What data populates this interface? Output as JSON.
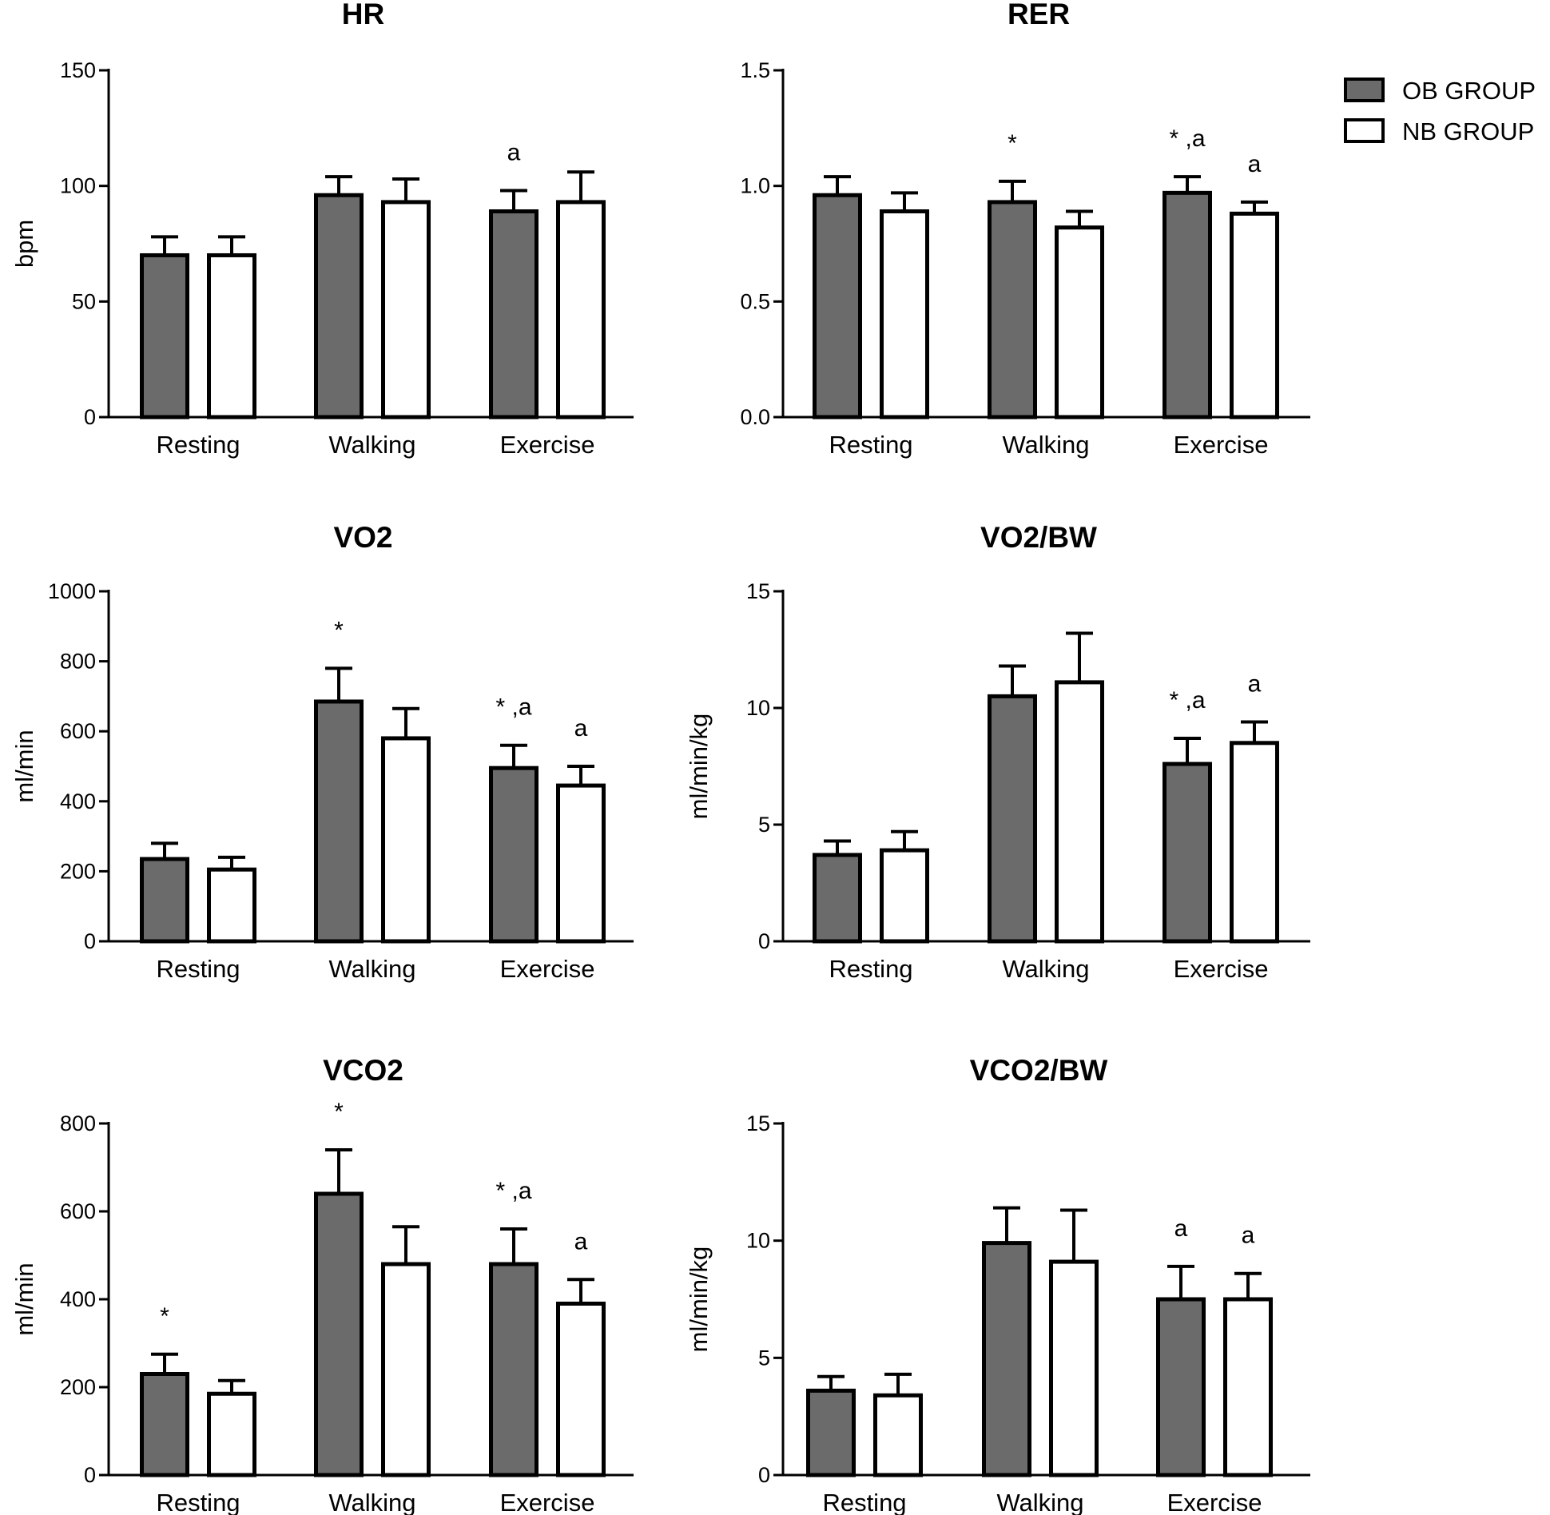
{
  "legend": {
    "entries": [
      {
        "name": "OB GROUP",
        "color": "#6b6b6b"
      },
      {
        "name": "NB GROUP",
        "color": "#ffffff"
      }
    ]
  },
  "chart_data": [
    {
      "type": "bar",
      "title": "HR",
      "xlabel": "",
      "ylabel": "bpm",
      "ylim": [
        0,
        150
      ],
      "yticks": [
        0,
        50,
        100,
        150
      ],
      "ytick_labels": [
        "0",
        "50",
        "100",
        "150"
      ],
      "categories": [
        "Resting",
        "Walking",
        "Exercise"
      ],
      "series": [
        {
          "name": "OB GROUP",
          "values": [
            70,
            96,
            89
          ],
          "errors": [
            8,
            8,
            9
          ],
          "annotations": [
            "",
            "",
            "a"
          ]
        },
        {
          "name": "NB GROUP",
          "values": [
            70,
            93,
            93
          ],
          "errors": [
            8,
            10,
            13
          ],
          "annotations": [
            "",
            "",
            ""
          ]
        }
      ]
    },
    {
      "type": "bar",
      "title": "RER",
      "xlabel": "",
      "ylabel": "",
      "ylim": [
        0,
        1.5
      ],
      "yticks": [
        0,
        0.5,
        1.0,
        1.5
      ],
      "ytick_labels": [
        "0.0",
        "0.5",
        "1.0",
        "1.5"
      ],
      "categories": [
        "Resting",
        "Walking",
        "Exercise"
      ],
      "series": [
        {
          "name": "OB GROUP",
          "values": [
            0.96,
            0.93,
            0.97
          ],
          "errors": [
            0.08,
            0.09,
            0.07
          ],
          "annotations": [
            "",
            "*",
            "* ,a"
          ]
        },
        {
          "name": "NB GROUP",
          "values": [
            0.89,
            0.82,
            0.88
          ],
          "errors": [
            0.08,
            0.07,
            0.05
          ],
          "annotations": [
            "",
            "",
            "a"
          ]
        }
      ]
    },
    {
      "type": "bar",
      "title": "VO2",
      "xlabel": "",
      "ylabel": "ml/min",
      "ylim": [
        0,
        1000
      ],
      "yticks": [
        0,
        200,
        400,
        600,
        800,
        1000
      ],
      "ytick_labels": [
        "0",
        "200",
        "400",
        "600",
        "800",
        "1000"
      ],
      "categories": [
        "Resting",
        "Walking",
        "Exercise"
      ],
      "series": [
        {
          "name": "OB GROUP",
          "values": [
            235,
            685,
            495
          ],
          "errors": [
            45,
            95,
            65
          ],
          "annotations": [
            "",
            "*",
            "* ,a"
          ]
        },
        {
          "name": "NB GROUP",
          "values": [
            205,
            580,
            445
          ],
          "errors": [
            35,
            85,
            55
          ],
          "annotations": [
            "",
            "",
            "a"
          ]
        }
      ]
    },
    {
      "type": "bar",
      "title": "VO2/BW",
      "xlabel": "",
      "ylabel": "ml/min/kg",
      "ylim": [
        0,
        15
      ],
      "yticks": [
        0,
        5,
        10,
        15
      ],
      "ytick_labels": [
        "0",
        "5",
        "10",
        "15"
      ],
      "categories": [
        "Resting",
        "Walking",
        "Exercise"
      ],
      "series": [
        {
          "name": "OB GROUP",
          "values": [
            3.7,
            10.5,
            7.6
          ],
          "errors": [
            0.6,
            1.3,
            1.1
          ],
          "annotations": [
            "",
            "",
            "* ,a"
          ]
        },
        {
          "name": "NB GROUP",
          "values": [
            3.9,
            11.1,
            8.5
          ],
          "errors": [
            0.8,
            2.1,
            0.9
          ],
          "annotations": [
            "",
            "",
            "a"
          ]
        }
      ]
    },
    {
      "type": "bar",
      "title": "VCO2",
      "xlabel": "",
      "ylabel": "ml/min",
      "ylim": [
        0,
        800
      ],
      "yticks": [
        0,
        200,
        400,
        600,
        800
      ],
      "ytick_labels": [
        "0",
        "200",
        "400",
        "600",
        "800"
      ],
      "categories": [
        "Resting",
        "Walking",
        "Exercise"
      ],
      "series": [
        {
          "name": "OB GROUP",
          "values": [
            230,
            640,
            480
          ],
          "errors": [
            45,
            100,
            80
          ],
          "annotations": [
            "*",
            "*",
            "* ,a"
          ]
        },
        {
          "name": "NB GROUP",
          "values": [
            185,
            480,
            390
          ],
          "errors": [
            30,
            85,
            55
          ],
          "annotations": [
            "",
            "",
            "a"
          ]
        }
      ]
    },
    {
      "type": "bar",
      "title": "VCO2/BW",
      "xlabel": "",
      "ylabel": "ml/min/kg",
      "ylim": [
        0,
        15
      ],
      "yticks": [
        0,
        5,
        10,
        15
      ],
      "ytick_labels": [
        "0",
        "5",
        "10",
        "15"
      ],
      "categories": [
        "Resting",
        "Walking",
        "Exercise"
      ],
      "series": [
        {
          "name": "OB GROUP",
          "values": [
            3.6,
            9.9,
            7.5
          ],
          "errors": [
            0.6,
            1.5,
            1.4
          ],
          "annotations": [
            "",
            "",
            "a"
          ]
        },
        {
          "name": "NB GROUP",
          "values": [
            3.4,
            9.1,
            7.5
          ],
          "errors": [
            0.9,
            2.2,
            1.1
          ],
          "annotations": [
            "",
            "",
            "a"
          ]
        }
      ]
    }
  ]
}
